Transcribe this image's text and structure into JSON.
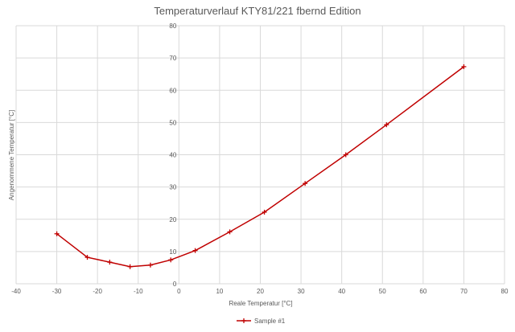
{
  "chart_data": {
    "type": "scatter",
    "title": "Temperaturverlauf KTY81/221 fbernd Edition",
    "xlabel": "Reale Temperatur [°C]",
    "ylabel": "Angenommene Temperatur [°C]",
    "xlim": [
      -40,
      80
    ],
    "ylim": [
      0,
      80
    ],
    "xticks": [
      -40,
      -30,
      -20,
      -10,
      0,
      10,
      20,
      30,
      40,
      50,
      60,
      70,
      80
    ],
    "yticks": [
      0,
      10,
      20,
      30,
      40,
      50,
      60,
      70,
      80
    ],
    "grid": true,
    "legend_position": "bottom",
    "series": [
      {
        "name": "Sample #1",
        "color": "#c00000",
        "marker": "plus",
        "x": [
          -30,
          -22.5,
          -17,
          -12,
          -7,
          -2,
          4,
          12.5,
          21,
          31,
          41,
          51,
          70
        ],
        "y": [
          15.5,
          8.2,
          6.7,
          5.3,
          5.8,
          7.4,
          10.3,
          16.1,
          22.2,
          31.1,
          40,
          49.3,
          67.3
        ]
      }
    ]
  }
}
